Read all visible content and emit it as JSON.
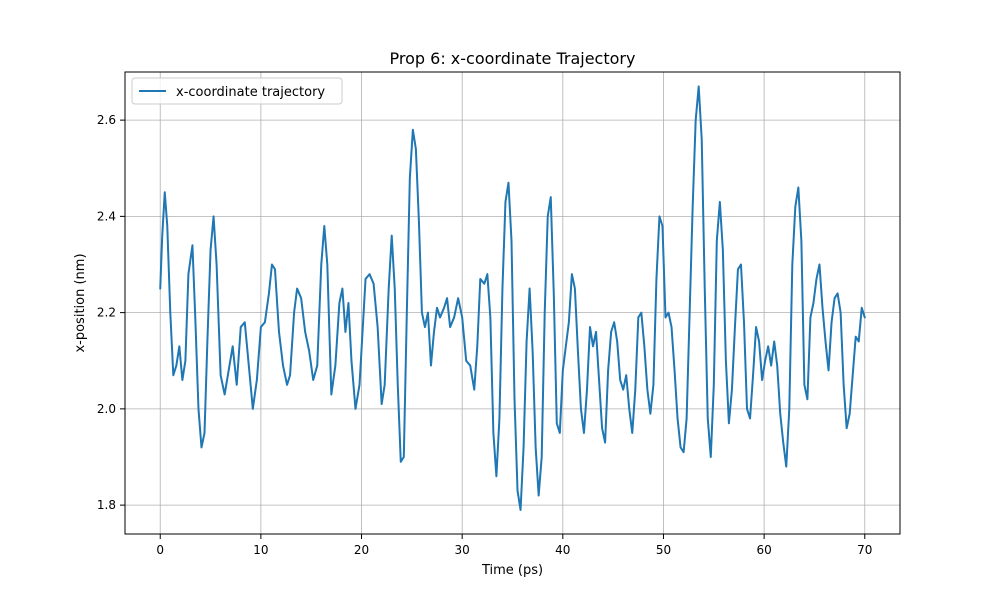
{
  "chart_data": {
    "type": "line",
    "title": "Prop 6: x-coordinate Trajectory",
    "xlabel": "Time (ps)",
    "ylabel": "x-position (nm)",
    "xlim": [
      -3.5,
      73.5
    ],
    "ylim": [
      1.74,
      2.7
    ],
    "xticks": [
      0,
      10,
      20,
      30,
      40,
      50,
      60,
      70
    ],
    "yticks": [
      1.8,
      2.0,
      2.2,
      2.4,
      2.6
    ],
    "xtick_labels": [
      "0",
      "10",
      "20",
      "30",
      "40",
      "50",
      "60",
      "70"
    ],
    "ytick_labels": [
      "1.8",
      "2.0",
      "2.2",
      "2.4",
      "2.6"
    ],
    "grid": true,
    "legend": {
      "position": "top-left",
      "entries": [
        "x-coordinate trajectory"
      ]
    },
    "colors": {
      "series": "#1f77b4",
      "grid": "#b0b0b0",
      "axes": "#000000"
    },
    "series": [
      {
        "name": "x-coordinate trajectory",
        "points": [
          [
            0.0,
            2.25
          ],
          [
            0.2,
            2.36
          ],
          [
            0.45,
            2.45
          ],
          [
            0.7,
            2.38
          ],
          [
            1.0,
            2.2
          ],
          [
            1.3,
            2.07
          ],
          [
            1.6,
            2.09
          ],
          [
            1.9,
            2.13
          ],
          [
            2.2,
            2.06
          ],
          [
            2.5,
            2.1
          ],
          [
            2.8,
            2.28
          ],
          [
            3.2,
            2.34
          ],
          [
            3.5,
            2.18
          ],
          [
            3.8,
            2.0
          ],
          [
            4.1,
            1.92
          ],
          [
            4.4,
            1.95
          ],
          [
            4.7,
            2.15
          ],
          [
            5.0,
            2.33
          ],
          [
            5.3,
            2.4
          ],
          [
            5.6,
            2.3
          ],
          [
            6.0,
            2.07
          ],
          [
            6.4,
            2.03
          ],
          [
            6.8,
            2.08
          ],
          [
            7.2,
            2.13
          ],
          [
            7.6,
            2.05
          ],
          [
            8.0,
            2.17
          ],
          [
            8.4,
            2.18
          ],
          [
            8.8,
            2.09
          ],
          [
            9.2,
            2.0
          ],
          [
            9.6,
            2.06
          ],
          [
            10.0,
            2.17
          ],
          [
            10.4,
            2.18
          ],
          [
            10.8,
            2.24
          ],
          [
            11.1,
            2.3
          ],
          [
            11.4,
            2.29
          ],
          [
            11.8,
            2.16
          ],
          [
            12.2,
            2.09
          ],
          [
            12.6,
            2.05
          ],
          [
            12.9,
            2.07
          ],
          [
            13.3,
            2.2
          ],
          [
            13.6,
            2.25
          ],
          [
            14.0,
            2.23
          ],
          [
            14.4,
            2.16
          ],
          [
            14.8,
            2.12
          ],
          [
            15.2,
            2.06
          ],
          [
            15.6,
            2.09
          ],
          [
            16.0,
            2.3
          ],
          [
            16.3,
            2.38
          ],
          [
            16.6,
            2.3
          ],
          [
            17.0,
            2.03
          ],
          [
            17.4,
            2.09
          ],
          [
            17.8,
            2.22
          ],
          [
            18.1,
            2.25
          ],
          [
            18.4,
            2.16
          ],
          [
            18.7,
            2.22
          ],
          [
            19.0,
            2.1
          ],
          [
            19.4,
            2.0
          ],
          [
            19.8,
            2.05
          ],
          [
            20.1,
            2.16
          ],
          [
            20.4,
            2.27
          ],
          [
            20.8,
            2.28
          ],
          [
            21.2,
            2.26
          ],
          [
            21.6,
            2.17
          ],
          [
            22.0,
            2.01
          ],
          [
            22.3,
            2.05
          ],
          [
            22.7,
            2.25
          ],
          [
            23.0,
            2.36
          ],
          [
            23.3,
            2.25
          ],
          [
            23.6,
            2.05
          ],
          [
            23.9,
            1.89
          ],
          [
            24.2,
            1.9
          ],
          [
            24.5,
            2.2
          ],
          [
            24.8,
            2.48
          ],
          [
            25.1,
            2.58
          ],
          [
            25.4,
            2.54
          ],
          [
            25.7,
            2.39
          ],
          [
            26.0,
            2.2
          ],
          [
            26.3,
            2.17
          ],
          [
            26.6,
            2.2
          ],
          [
            26.9,
            2.09
          ],
          [
            27.2,
            2.16
          ],
          [
            27.5,
            2.21
          ],
          [
            27.8,
            2.19
          ],
          [
            28.2,
            2.21
          ],
          [
            28.5,
            2.23
          ],
          [
            28.8,
            2.17
          ],
          [
            29.2,
            2.19
          ],
          [
            29.6,
            2.23
          ],
          [
            30.0,
            2.19
          ],
          [
            30.4,
            2.1
          ],
          [
            30.8,
            2.09
          ],
          [
            31.2,
            2.04
          ],
          [
            31.5,
            2.13
          ],
          [
            31.8,
            2.27
          ],
          [
            32.2,
            2.26
          ],
          [
            32.5,
            2.28
          ],
          [
            32.8,
            2.19
          ],
          [
            33.1,
            1.95
          ],
          [
            33.4,
            1.86
          ],
          [
            33.7,
            1.98
          ],
          [
            34.0,
            2.25
          ],
          [
            34.3,
            2.43
          ],
          [
            34.6,
            2.47
          ],
          [
            34.9,
            2.35
          ],
          [
            35.2,
            2.02
          ],
          [
            35.5,
            1.83
          ],
          [
            35.8,
            1.79
          ],
          [
            36.1,
            1.92
          ],
          [
            36.4,
            2.14
          ],
          [
            36.7,
            2.25
          ],
          [
            37.0,
            2.12
          ],
          [
            37.3,
            1.92
          ],
          [
            37.6,
            1.82
          ],
          [
            37.9,
            1.9
          ],
          [
            38.2,
            2.2
          ],
          [
            38.5,
            2.4
          ],
          [
            38.8,
            2.44
          ],
          [
            39.1,
            2.24
          ],
          [
            39.4,
            1.97
          ],
          [
            39.7,
            1.95
          ],
          [
            40.0,
            2.08
          ],
          [
            40.3,
            2.13
          ],
          [
            40.6,
            2.18
          ],
          [
            40.9,
            2.28
          ],
          [
            41.2,
            2.25
          ],
          [
            41.5,
            2.12
          ],
          [
            41.8,
            2.0
          ],
          [
            42.1,
            1.95
          ],
          [
            42.4,
            2.04
          ],
          [
            42.7,
            2.17
          ],
          [
            43.0,
            2.13
          ],
          [
            43.3,
            2.16
          ],
          [
            43.6,
            2.06
          ],
          [
            43.9,
            1.96
          ],
          [
            44.2,
            1.93
          ],
          [
            44.5,
            2.08
          ],
          [
            44.8,
            2.16
          ],
          [
            45.1,
            2.18
          ],
          [
            45.4,
            2.14
          ],
          [
            45.7,
            2.06
          ],
          [
            46.0,
            2.04
          ],
          [
            46.3,
            2.07
          ],
          [
            46.6,
            2.0
          ],
          [
            46.9,
            1.95
          ],
          [
            47.2,
            2.04
          ],
          [
            47.5,
            2.19
          ],
          [
            47.8,
            2.2
          ],
          [
            48.1,
            2.13
          ],
          [
            48.4,
            2.04
          ],
          [
            48.7,
            1.99
          ],
          [
            49.0,
            2.05
          ],
          [
            49.3,
            2.27
          ],
          [
            49.6,
            2.4
          ],
          [
            49.9,
            2.38
          ],
          [
            50.2,
            2.19
          ],
          [
            50.5,
            2.2
          ],
          [
            50.8,
            2.17
          ],
          [
            51.1,
            2.08
          ],
          [
            51.4,
            1.98
          ],
          [
            51.7,
            1.92
          ],
          [
            52.0,
            1.91
          ],
          [
            52.3,
            1.98
          ],
          [
            52.6,
            2.2
          ],
          [
            52.9,
            2.42
          ],
          [
            53.2,
            2.6
          ],
          [
            53.5,
            2.67
          ],
          [
            53.8,
            2.56
          ],
          [
            54.1,
            2.25
          ],
          [
            54.4,
            1.98
          ],
          [
            54.7,
            1.9
          ],
          [
            55.0,
            2.05
          ],
          [
            55.3,
            2.35
          ],
          [
            55.6,
            2.43
          ],
          [
            55.9,
            2.33
          ],
          [
            56.2,
            2.1
          ],
          [
            56.5,
            1.97
          ],
          [
            56.8,
            2.04
          ],
          [
            57.1,
            2.17
          ],
          [
            57.4,
            2.29
          ],
          [
            57.7,
            2.3
          ],
          [
            58.0,
            2.18
          ],
          [
            58.3,
            2.0
          ],
          [
            58.6,
            1.98
          ],
          [
            58.9,
            2.07
          ],
          [
            59.2,
            2.17
          ],
          [
            59.5,
            2.14
          ],
          [
            59.8,
            2.06
          ],
          [
            60.1,
            2.1
          ],
          [
            60.4,
            2.13
          ],
          [
            60.7,
            2.09
          ],
          [
            61.0,
            2.14
          ],
          [
            61.3,
            2.09
          ],
          [
            61.6,
            1.99
          ],
          [
            61.9,
            1.93
          ],
          [
            62.2,
            1.88
          ],
          [
            62.5,
            2.0
          ],
          [
            62.8,
            2.3
          ],
          [
            63.1,
            2.42
          ],
          [
            63.4,
            2.46
          ],
          [
            63.7,
            2.35
          ],
          [
            64.0,
            2.05
          ],
          [
            64.3,
            2.02
          ],
          [
            64.6,
            2.19
          ],
          [
            64.9,
            2.22
          ],
          [
            65.2,
            2.27
          ],
          [
            65.5,
            2.3
          ],
          [
            65.8,
            2.21
          ],
          [
            66.1,
            2.14
          ],
          [
            66.4,
            2.08
          ],
          [
            66.7,
            2.18
          ],
          [
            67.0,
            2.23
          ],
          [
            67.3,
            2.24
          ],
          [
            67.6,
            2.2
          ],
          [
            67.9,
            2.05
          ],
          [
            68.2,
            1.96
          ],
          [
            68.5,
            1.99
          ],
          [
            68.8,
            2.07
          ],
          [
            69.1,
            2.15
          ],
          [
            69.4,
            2.14
          ],
          [
            69.7,
            2.21
          ],
          [
            70.0,
            2.19
          ]
        ]
      }
    ]
  }
}
